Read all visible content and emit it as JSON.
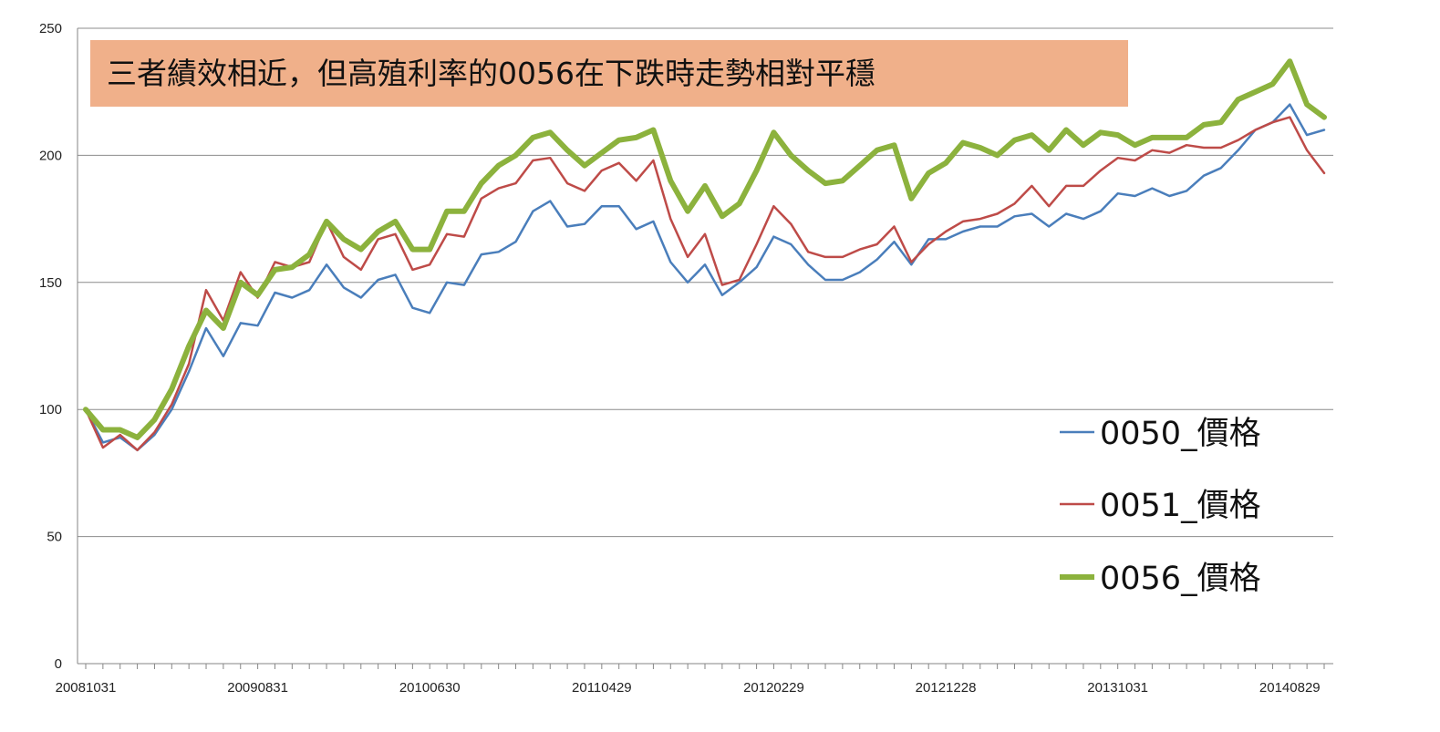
{
  "chart_data": {
    "type": "line",
    "annotation": "三者績效相近，但高殖利率的0056在下跌時走勢相對平穩",
    "annotation_color": "#F0B08A",
    "ylim": [
      0,
      250
    ],
    "y_ticks": [
      0,
      50,
      100,
      150,
      200,
      250
    ],
    "grid": "horizontal",
    "legend_position": "right",
    "x_tick_labels": [
      "20081031",
      "20090831",
      "20100630",
      "20110429",
      "20120229",
      "20121228",
      "20131031",
      "20140829"
    ],
    "x_label_every": 10,
    "series": [
      {
        "name": "0050_價格",
        "color": "#4A7EBB",
        "values": [
          100,
          87,
          89,
          84,
          90,
          100,
          115,
          132,
          121,
          134,
          133,
          146,
          144,
          147,
          157,
          148,
          144,
          151,
          153,
          140,
          138,
          150,
          149,
          161,
          162,
          166,
          178,
          182,
          172,
          173,
          180,
          180,
          171,
          174,
          158,
          150,
          157,
          145,
          150,
          156,
          168,
          165,
          157,
          151,
          151,
          154,
          159,
          166,
          157,
          167,
          167,
          170,
          172,
          172,
          176,
          177,
          172,
          177,
          175,
          178,
          185,
          184,
          187,
          184,
          186,
          192,
          195,
          202,
          210,
          213,
          220,
          208,
          210
        ]
      },
      {
        "name": "0051_價格",
        "color": "#BE4B48",
        "values": [
          100,
          85,
          90,
          84,
          91,
          102,
          118,
          147,
          135,
          154,
          144,
          158,
          156,
          158,
          174,
          160,
          155,
          167,
          169,
          155,
          157,
          169,
          168,
          183,
          187,
          189,
          198,
          199,
          189,
          186,
          194,
          197,
          190,
          198,
          175,
          160,
          169,
          149,
          151,
          165,
          180,
          173,
          162,
          160,
          160,
          163,
          165,
          172,
          158,
          165,
          170,
          174,
          175,
          177,
          181,
          188,
          180,
          188,
          188,
          194,
          199,
          198,
          202,
          201,
          204,
          203,
          203,
          206,
          210,
          213,
          215,
          202,
          193
        ]
      },
      {
        "name": "0056_價格",
        "color": "#8CB23D",
        "values": [
          100,
          92,
          92,
          89,
          96,
          108,
          125,
          139,
          132,
          150,
          145,
          155,
          156,
          161,
          174,
          167,
          163,
          170,
          174,
          163,
          163,
          178,
          178,
          189,
          196,
          200,
          207,
          209,
          202,
          196,
          201,
          206,
          207,
          210,
          190,
          178,
          188,
          176,
          181,
          194,
          209,
          200,
          194,
          189,
          190,
          196,
          202,
          204,
          183,
          193,
          197,
          205,
          203,
          200,
          206,
          208,
          202,
          210,
          204,
          209,
          208,
          204,
          207,
          207,
          207,
          212,
          213,
          222,
          225,
          228,
          237,
          220,
          215
        ]
      }
    ]
  }
}
